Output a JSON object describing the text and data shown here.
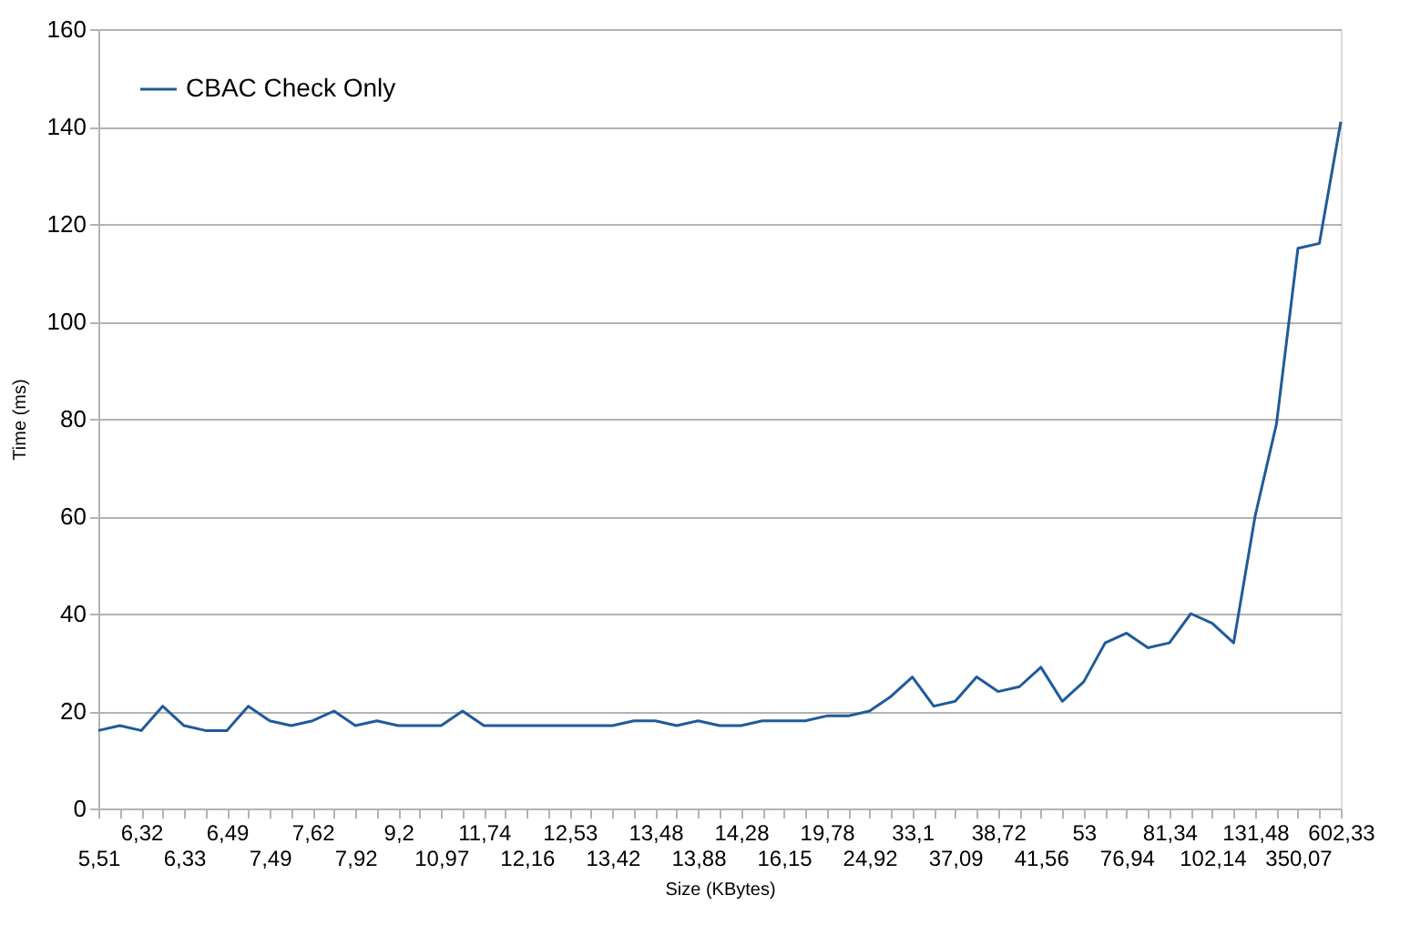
{
  "chart_data": {
    "type": "line",
    "xlabel": "Size (KBytes)",
    "ylabel": "Time (ms)",
    "categories": [
      "5,51",
      null,
      "6,32",
      null,
      "6,33",
      null,
      "6,49",
      null,
      "7,49",
      null,
      "7,62",
      null,
      "7,92",
      null,
      "9,2",
      null,
      "10,97",
      null,
      "11,74",
      null,
      "12,16",
      null,
      "12,53",
      null,
      "13,42",
      null,
      "13,48",
      null,
      "13,88",
      null,
      "14,28",
      null,
      "16,15",
      null,
      "19,78",
      null,
      "24,92",
      null,
      "33,1",
      null,
      "37,09",
      null,
      "38,72",
      null,
      "41,56",
      null,
      "53",
      null,
      "76,94",
      null,
      "81,34",
      null,
      "102,14",
      null,
      "131,48",
      null,
      "350,07",
      null,
      "602,33"
    ],
    "series": [
      {
        "name": "CBAC Check Only",
        "color": "#1f5b99",
        "values": [
          16,
          17,
          16,
          21,
          17,
          16,
          16,
          21,
          18,
          17,
          18,
          20,
          17,
          18,
          17,
          17,
          17,
          20,
          17,
          17,
          17,
          17,
          17,
          17,
          17,
          18,
          18,
          17,
          18,
          17,
          17,
          18,
          18,
          18,
          19,
          19,
          20,
          23,
          27,
          21,
          22,
          27,
          24,
          25,
          29,
          22,
          26,
          34,
          36,
          33,
          34,
          40,
          38,
          34,
          60,
          79,
          115,
          116,
          141
        ]
      }
    ],
    "ylim": [
      0,
      160
    ],
    "yticks": [
      0,
      20,
      40,
      60,
      80,
      100,
      120,
      140,
      160
    ],
    "grid": "y",
    "legend": "top left",
    "marker": "none",
    "line_style": "solid"
  }
}
